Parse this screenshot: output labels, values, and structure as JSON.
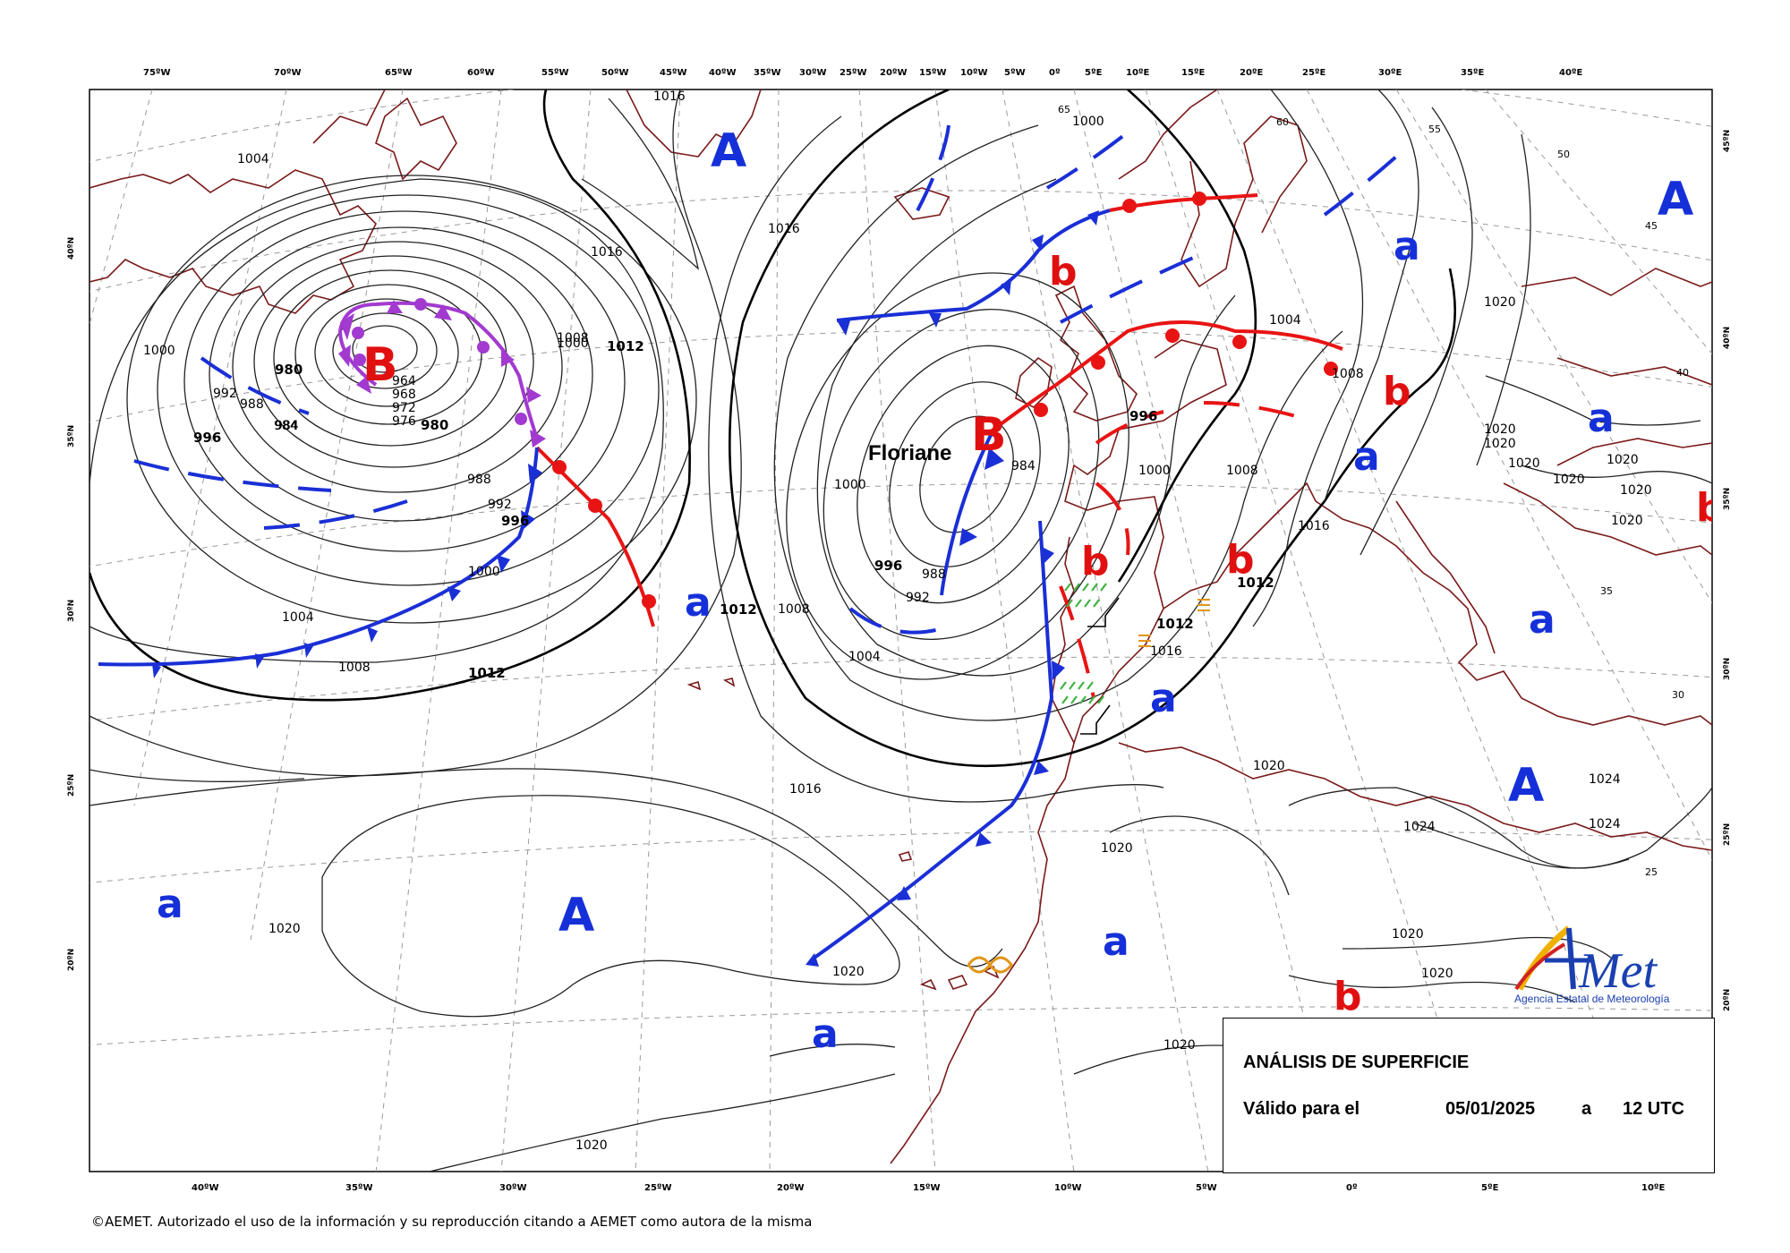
{
  "top_lon_labels": [
    "75ºW",
    "70ºW",
    "65ºW",
    "60ºW",
    "55ºW",
    "50ºW",
    "45ºW",
    "40ºW",
    "35ºW",
    "30ºW",
    "25ºW",
    "20ºW",
    "15ºW",
    "10ºW",
    "5ºW",
    "0º",
    "5ºE",
    "10ºE",
    "15ºE",
    "20ºE",
    "25ºE",
    "30ºE",
    "35ºE",
    "40ºE"
  ],
  "bottom_lon_labels": [
    "40ºW",
    "35ºW",
    "30ºW",
    "25ºW",
    "20ºW",
    "15ºW",
    "10ºW",
    "5ºW",
    "0º",
    "5ºE",
    "10ºE"
  ],
  "left_lat_labels": [
    "40ºN",
    "35ºN",
    "30ºN",
    "25ºN",
    "20ºN"
  ],
  "right_lat_labels": [
    "45ºN",
    "40ºN",
    "35ºN",
    "30ºN",
    "25ºN",
    "20ºN"
  ],
  "grid_inner_labels": [
    "65",
    "60",
    "55",
    "50",
    "45",
    "40",
    "35",
    "30",
    "25"
  ],
  "isobar_labels": [
    "1004",
    "1000",
    "992",
    "988",
    "984",
    "980",
    "976",
    "972",
    "968",
    "964",
    "996",
    "1008",
    "1012",
    "1016",
    "1020",
    "1024"
  ],
  "pressure_centers": {
    "high_label": "A",
    "high_secondary_label": "a",
    "low_label": "B",
    "low_secondary_label": "b",
    "storm_name": "Floriane"
  },
  "colors": {
    "high": "#1530d8",
    "low": "#e01010",
    "cold_front": "#1a2fd6",
    "warm_front": "#e81414",
    "occluded_front": "#a23ad0",
    "coastline": "#7a1a1a",
    "isobar": "#222222",
    "grid": "#9a9a9a"
  },
  "info": {
    "title": "ANÁLISIS DE SUPERFICIE",
    "valid_label": "Válido para el",
    "date": "05/01/2025",
    "connector": "a",
    "time": "12 UTC"
  },
  "logo": {
    "brand": "AEMet",
    "full_name": "Agencia Estatal de Meteorología"
  },
  "copyright": "©AEMET. Autorizado el uso de la información y su reproducción citando a AEMET como autora de la misma"
}
